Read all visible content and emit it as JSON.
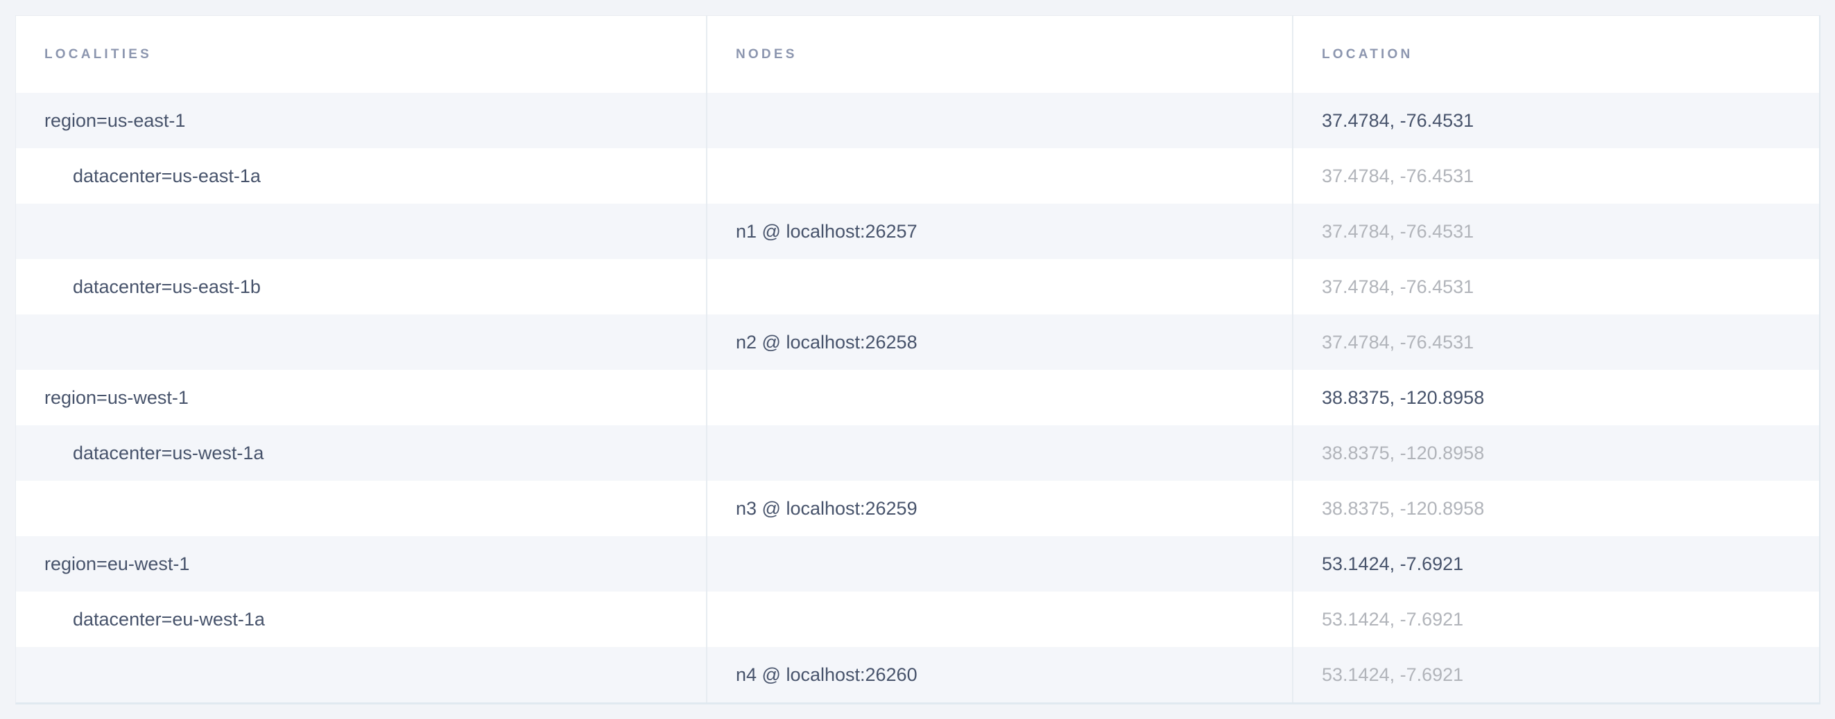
{
  "colors": {
    "page-bg": "#f2f4f8",
    "row-alt-bg": "#f4f6fa",
    "border": "#e9edf2",
    "border-strong": "#e0e9f0",
    "divider": "#e7ecf1",
    "header-text": "#8c96af",
    "body-text": "#47536b",
    "muted-text": "#b1b4ba"
  },
  "table": {
    "columns": [
      {
        "key": "localities",
        "label": "LOCALITIES"
      },
      {
        "key": "nodes",
        "label": "NODES"
      },
      {
        "key": "location",
        "label": "LOCATION"
      }
    ],
    "rows": [
      {
        "locality": "region=us-east-1",
        "depth": 0,
        "node": "",
        "location": "37.4784, -76.4531",
        "location_emphasis": "dark"
      },
      {
        "locality": "datacenter=us-east-1a",
        "depth": 1,
        "node": "",
        "location": "37.4784, -76.4531",
        "location_emphasis": "light"
      },
      {
        "locality": "",
        "depth": 0,
        "node": "n1 @ localhost:26257",
        "location": "37.4784, -76.4531",
        "location_emphasis": "light"
      },
      {
        "locality": "datacenter=us-east-1b",
        "depth": 1,
        "node": "",
        "location": "37.4784, -76.4531",
        "location_emphasis": "light"
      },
      {
        "locality": "",
        "depth": 0,
        "node": "n2 @ localhost:26258",
        "location": "37.4784, -76.4531",
        "location_emphasis": "light"
      },
      {
        "locality": "region=us-west-1",
        "depth": 0,
        "node": "",
        "location": "38.8375, -120.8958",
        "location_emphasis": "dark"
      },
      {
        "locality": "datacenter=us-west-1a",
        "depth": 1,
        "node": "",
        "location": "38.8375, -120.8958",
        "location_emphasis": "light"
      },
      {
        "locality": "",
        "depth": 0,
        "node": "n3 @ localhost:26259",
        "location": "38.8375, -120.8958",
        "location_emphasis": "light"
      },
      {
        "locality": "region=eu-west-1",
        "depth": 0,
        "node": "",
        "location": "53.1424, -7.6921",
        "location_emphasis": "dark"
      },
      {
        "locality": "datacenter=eu-west-1a",
        "depth": 1,
        "node": "",
        "location": "53.1424, -7.6921",
        "location_emphasis": "light"
      },
      {
        "locality": "",
        "depth": 0,
        "node": "n4 @ localhost:26260",
        "location": "53.1424, -7.6921",
        "location_emphasis": "light"
      }
    ]
  }
}
